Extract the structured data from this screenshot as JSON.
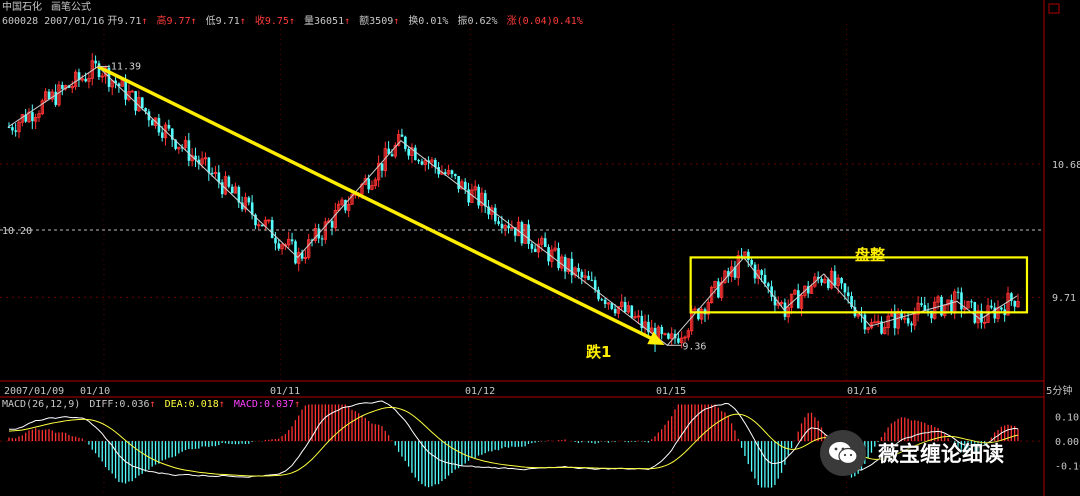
{
  "header": {
    "line1": {
      "security": "中国石化",
      "indicator_name": "画笔公式"
    },
    "line2": {
      "code_date": "600028 2007/01/16",
      "open": "开9.71",
      "open_arrow": "↑",
      "high": "高9.77",
      "high_arrow": "↑",
      "low": "低9.71",
      "low_arrow": "↑",
      "close": "收9.75",
      "close_arrow": "↑",
      "volume": "量36051",
      "volume_arrow": "↑",
      "amount": "额3509",
      "amount_arrow": "↑",
      "turnover": "换0.01%",
      "amplitude": "振0.62%",
      "change": "涨(0.04)0.41%"
    }
  },
  "macd_header": {
    "name": "MACD(26,12,9)",
    "diff": "DIFF:0.036",
    "diff_arrow": "↑",
    "dea": "DEA:0.018",
    "dea_arrow": "↑",
    "macd": "MACD:0.037",
    "macd_arrow": "↑"
  },
  "annotations": {
    "high_marker": "11.39",
    "low_marker": "9.36",
    "ref_line_label": "10.20",
    "fall_label": "跌1",
    "consolidation_label": "盘整"
  },
  "watermark": {
    "text": "薇宝缠论细读",
    "icon": "wechat-icon"
  },
  "chart_data": [
    {
      "type": "candlestick",
      "title": "",
      "xlabel": "",
      "ylabel": "",
      "x_tick_labels": [
        "2007/01/09",
        "01/10",
        "01/11",
        "01/12",
        "01/15",
        "01/16"
      ],
      "period_label": "5分钟",
      "y_tick_labels": [
        "10.68",
        "9.71"
      ],
      "ylim": [
        9.1,
        11.7
      ],
      "grid": true,
      "colors": {
        "up": "#ff3232",
        "down": "#54ffff",
        "wave": "#d0d0d0",
        "trend": "#ffee00",
        "box": "#ffff00"
      },
      "wave_points": [
        {
          "bar": 0,
          "price": 10.95
        },
        {
          "bar": 27,
          "price": 11.39
        },
        {
          "bar": 87,
          "price": 10.0
        },
        {
          "bar": 118,
          "price": 10.85
        },
        {
          "bar": 198,
          "price": 9.36
        },
        {
          "bar": 221,
          "price": 10.0
        },
        {
          "bar": 233,
          "price": 9.62
        },
        {
          "bar": 245,
          "price": 9.88
        },
        {
          "bar": 259,
          "price": 9.5
        },
        {
          "bar": 285,
          "price": 9.68
        },
        {
          "bar": 292,
          "price": 9.55
        },
        {
          "bar": 303,
          "price": 9.72
        }
      ],
      "trend_line": {
        "from": {
          "bar": 27,
          "price": 11.39
        },
        "to": {
          "bar": 198,
          "price": 9.36
        },
        "label": "跌1"
      },
      "consolidation_box": {
        "bar_from": 205,
        "bar_to": 306,
        "price_low": 9.6,
        "price_high": 10.0,
        "label": "盘整"
      },
      "reference_line": {
        "price": 10.2,
        "label": "10.20"
      },
      "extreme_labels": [
        {
          "bar": 27,
          "price": 11.39,
          "text": "11.39"
        },
        {
          "bar": 198,
          "price": 9.36,
          "text": "9.36"
        }
      ]
    },
    {
      "type": "macd",
      "name": "MACD(26,12,9)",
      "y_tick_labels": [
        "0.10",
        "0.00",
        "-0.10"
      ],
      "ylim": [
        -0.2,
        0.16
      ],
      "series": [
        {
          "name": "DIFF",
          "last_value": 0.036
        },
        {
          "name": "DEA",
          "last_value": 0.018
        },
        {
          "name": "MACD",
          "last_value": 0.037
        }
      ]
    }
  ]
}
